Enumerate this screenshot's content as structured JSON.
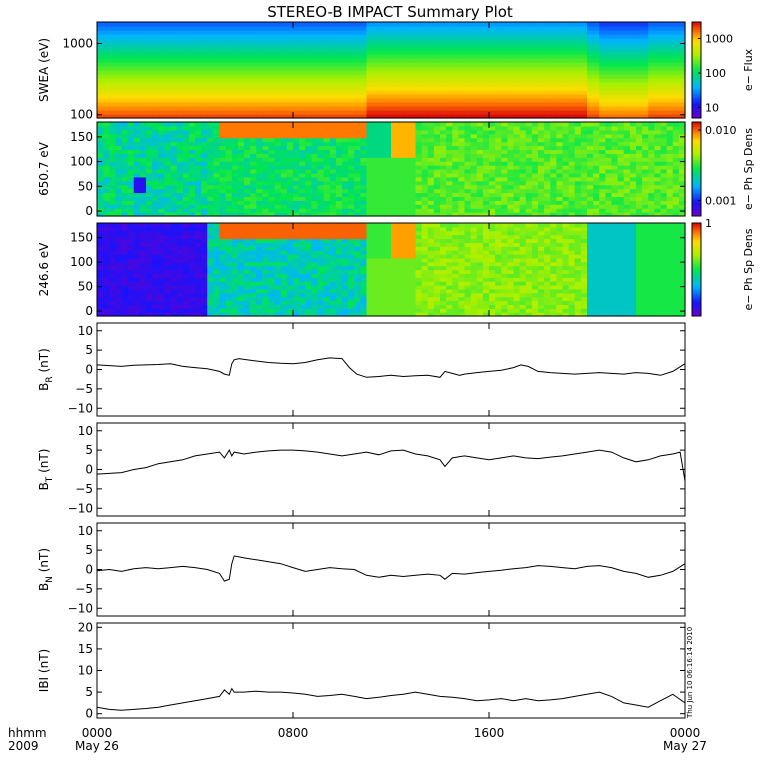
{
  "title": "STEREO-B IMPACT Summary Plot",
  "timestamp": "Thu Jun 10 06:16:14 2010",
  "x_axis": {
    "row1_label": "hhmm",
    "row2_label": "2009",
    "ticks": [
      {
        "hour": 0,
        "label": "0000",
        "sublabel": "May 26"
      },
      {
        "hour": 8,
        "label": "0800",
        "sublabel": ""
      },
      {
        "hour": 16,
        "label": "1600",
        "sublabel": ""
      },
      {
        "hour": 24,
        "label": "0000",
        "sublabel": "May 27"
      }
    ],
    "range_hours": [
      0,
      24
    ]
  },
  "colors": {
    "line": "#000000",
    "axis": "#000000"
  },
  "chart_data": [
    {
      "id": "swea",
      "type": "heatmap",
      "ylabel": "SWEA (eV)",
      "yscale": "log",
      "ylim": [
        90,
        2000
      ],
      "yticks": [
        {
          "value": 100,
          "label": "100"
        },
        {
          "value": 1000,
          "label": "1000"
        }
      ],
      "colorbar": {
        "label": "e− Flux",
        "scale": "log",
        "range": [
          5,
          3000
        ],
        "ticks": [
          {
            "value": 10,
            "label": "10"
          },
          {
            "value": 100,
            "label": "100"
          },
          {
            "value": 1000,
            "label": "1000"
          }
        ]
      }
    },
    {
      "id": "pad650",
      "type": "heatmap",
      "ylabel": "650.7 eV",
      "ylim": [
        -10,
        180
      ],
      "yticks": [
        {
          "value": 0,
          "label": "0"
        },
        {
          "value": 50,
          "label": "50"
        },
        {
          "value": 100,
          "label": "100"
        },
        {
          "value": 150,
          "label": "150"
        }
      ],
      "colorbar": {
        "label": "e− Ph Sp Dens",
        "scale": "log",
        "range": [
          0.0006,
          0.013
        ],
        "ticks": [
          {
            "value": 0.001,
            "label": "0.001"
          },
          {
            "value": 0.01,
            "label": "0.010"
          }
        ]
      }
    },
    {
      "id": "pad246",
      "type": "heatmap",
      "ylabel": "246.6 eV",
      "ylim": [
        -10,
        180
      ],
      "yticks": [
        {
          "value": 0,
          "label": "0"
        },
        {
          "value": 50,
          "label": "50"
        },
        {
          "value": 100,
          "label": "100"
        },
        {
          "value": 150,
          "label": "150"
        }
      ],
      "colorbar": {
        "label": "e− Ph Sp Dens",
        "scale": "linear",
        "range": [
          0,
          1
        ],
        "ticks": [
          {
            "value": 1,
            "label": "1"
          }
        ]
      }
    },
    {
      "id": "br",
      "type": "line",
      "ylabel": "B",
      "ylabel_sub": "R",
      "ylabel_unit": "(nT)",
      "ylim": [
        -12,
        12
      ],
      "yticks": [
        {
          "value": -10,
          "label": "−10"
        },
        {
          "value": -5,
          "label": "−5"
        },
        {
          "value": 0,
          "label": "0"
        },
        {
          "value": 5,
          "label": "5"
        },
        {
          "value": 10,
          "label": "10"
        }
      ],
      "x": [
        0,
        0.5,
        1,
        1.5,
        2,
        2.5,
        3,
        3.5,
        4,
        4.5,
        5,
        5.2,
        5.4,
        5.5,
        5.6,
        5.8,
        6,
        6.5,
        7,
        7.5,
        8,
        8.5,
        9,
        9.5,
        10,
        10.3,
        10.6,
        11,
        11.5,
        12,
        12.5,
        13,
        13.5,
        14,
        14.2,
        14.5,
        14.8,
        15,
        15.5,
        16,
        16.5,
        17,
        17.3,
        17.6,
        18,
        18.5,
        19,
        19.5,
        20,
        20.5,
        21,
        21.5,
        22,
        22.5,
        23,
        23.5,
        24
      ],
      "y": [
        1.2,
        1.0,
        0.8,
        1.1,
        1.2,
        1.3,
        1.5,
        0.8,
        0.5,
        0.2,
        -0.5,
        -1.2,
        -1.5,
        1.5,
        2.5,
        2.8,
        2.6,
        2.2,
        1.8,
        1.6,
        1.5,
        1.8,
        2.5,
        3.0,
        2.8,
        0.5,
        -1.2,
        -2.0,
        -1.8,
        -1.5,
        -1.8,
        -1.6,
        -1.5,
        -2.0,
        -0.5,
        -1.0,
        -1.5,
        -1.2,
        -0.8,
        -0.5,
        -0.2,
        0.5,
        1.2,
        0.8,
        -0.5,
        -0.8,
        -1.0,
        -1.2,
        -1.0,
        -0.8,
        -1.0,
        -1.2,
        -0.8,
        -1.0,
        -1.5,
        -0.5,
        1.5
      ]
    },
    {
      "id": "bt",
      "type": "line",
      "ylabel": "B",
      "ylabel_sub": "T",
      "ylabel_unit": "(nT)",
      "ylim": [
        -12,
        12
      ],
      "yticks": [
        {
          "value": -10,
          "label": "−10"
        },
        {
          "value": -5,
          "label": "−5"
        },
        {
          "value": 0,
          "label": "0"
        },
        {
          "value": 5,
          "label": "5"
        },
        {
          "value": 10,
          "label": "10"
        }
      ],
      "x": [
        0,
        0.5,
        1,
        1.5,
        2,
        2.5,
        3,
        3.5,
        4,
        4.5,
        5,
        5.2,
        5.4,
        5.5,
        5.6,
        6,
        6.5,
        7,
        7.5,
        8,
        8.5,
        9,
        9.5,
        10,
        10.5,
        11,
        11.5,
        12,
        12.5,
        13,
        13.5,
        14,
        14.2,
        14.5,
        15,
        15.5,
        16,
        16.5,
        17,
        17.5,
        18,
        18.5,
        19,
        19.5,
        20,
        20.5,
        21,
        21.5,
        22,
        22.5,
        23,
        23.5,
        23.8,
        24
      ],
      "y": [
        -1.2,
        -1.0,
        -0.8,
        0.0,
        0.5,
        1.5,
        2.0,
        2.5,
        3.5,
        4.0,
        4.5,
        3.0,
        5.0,
        3.5,
        4.5,
        4.0,
        4.5,
        4.8,
        5.0,
        5.0,
        4.8,
        4.5,
        4.0,
        3.5,
        4.0,
        4.5,
        3.8,
        4.8,
        5.0,
        4.0,
        3.5,
        2.5,
        0.8,
        3.0,
        3.5,
        3.0,
        2.5,
        3.0,
        3.5,
        3.0,
        2.8,
        3.2,
        3.5,
        4.0,
        4.5,
        5.0,
        4.5,
        3.0,
        2.0,
        2.5,
        3.5,
        4.0,
        4.5,
        -3.0
      ]
    },
    {
      "id": "bn",
      "type": "line",
      "ylabel": "B",
      "ylabel_sub": "N",
      "ylabel_unit": "(nT)",
      "ylim": [
        -12,
        12
      ],
      "yticks": [
        {
          "value": -10,
          "label": "−10"
        },
        {
          "value": -5,
          "label": "−5"
        },
        {
          "value": 0,
          "label": "0"
        },
        {
          "value": 5,
          "label": "5"
        },
        {
          "value": 10,
          "label": "10"
        }
      ],
      "x": [
        0,
        0.5,
        1,
        1.5,
        2,
        2.5,
        3,
        3.5,
        4,
        4.5,
        5,
        5.2,
        5.4,
        5.5,
        5.6,
        6,
        6.5,
        7,
        7.5,
        8,
        8.5,
        9,
        9.5,
        10,
        10.5,
        11,
        11.5,
        12,
        12.5,
        13,
        13.5,
        14,
        14.2,
        14.5,
        15,
        15.5,
        16,
        16.5,
        17,
        17.5,
        18,
        18.5,
        19,
        19.5,
        20,
        20.5,
        21,
        21.5,
        22,
        22.5,
        23,
        23.5,
        24
      ],
      "y": [
        -0.3,
        0.0,
        -0.5,
        0.2,
        0.5,
        0.2,
        0.5,
        0.8,
        0.5,
        0.0,
        -1.0,
        -3.0,
        -2.5,
        1.5,
        3.5,
        3.0,
        2.5,
        2.0,
        1.5,
        0.5,
        -0.5,
        0.0,
        0.5,
        0.2,
        0.0,
        -1.5,
        -2.0,
        -1.5,
        -1.8,
        -1.5,
        -1.2,
        -1.5,
        -2.5,
        -1.0,
        -1.2,
        -0.8,
        -0.5,
        -0.2,
        0.2,
        0.5,
        1.0,
        0.8,
        0.5,
        0.2,
        0.8,
        1.0,
        0.5,
        -0.5,
        -1.0,
        -2.0,
        -1.5,
        -0.5,
        1.5
      ]
    },
    {
      "id": "bmag",
      "type": "line",
      "ylabel": "IBI",
      "ylabel_unit": "(nT)",
      "ylim": [
        -1,
        21
      ],
      "yticks": [
        {
          "value": 0,
          "label": "0"
        },
        {
          "value": 5,
          "label": "5"
        },
        {
          "value": 10,
          "label": "10"
        },
        {
          "value": 15,
          "label": "15"
        },
        {
          "value": 20,
          "label": "20"
        }
      ],
      "x": [
        0,
        0.5,
        1,
        1.5,
        2,
        2.5,
        3,
        3.5,
        4,
        4.5,
        5,
        5.2,
        5.4,
        5.5,
        5.6,
        6,
        6.5,
        7,
        7.5,
        8,
        8.5,
        9,
        9.5,
        10,
        10.5,
        11,
        11.5,
        12,
        12.5,
        13,
        13.5,
        14,
        14.5,
        15,
        15.5,
        16,
        16.5,
        17,
        17.5,
        18,
        18.5,
        19,
        19.5,
        20,
        20.5,
        21,
        21.5,
        22,
        22.5,
        23,
        23.5,
        24
      ],
      "y": [
        1.5,
        1.0,
        0.8,
        1.0,
        1.2,
        1.5,
        2.0,
        2.5,
        3.0,
        3.5,
        4.0,
        5.5,
        4.5,
        5.8,
        5.0,
        5.0,
        5.2,
        5.0,
        5.0,
        4.8,
        4.5,
        4.0,
        4.2,
        4.5,
        4.0,
        3.5,
        3.8,
        4.2,
        4.5,
        5.0,
        4.5,
        4.0,
        3.8,
        3.5,
        3.0,
        3.2,
        3.5,
        3.0,
        3.5,
        3.0,
        3.2,
        3.5,
        4.0,
        4.5,
        5.0,
        4.0,
        2.5,
        2.0,
        1.5,
        3.0,
        4.5,
        2.5
      ]
    }
  ]
}
